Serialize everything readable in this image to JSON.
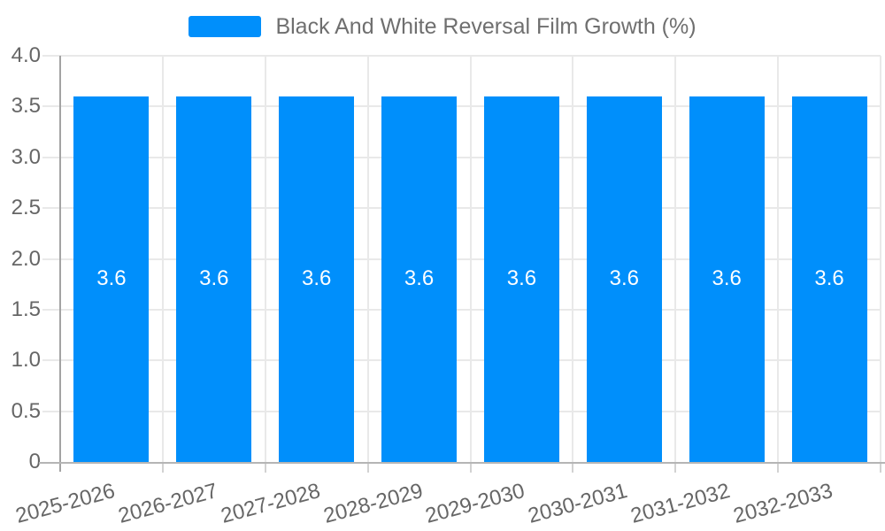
{
  "chart_data": {
    "type": "bar",
    "title": "Black And White Reversal Film Growth (%)",
    "legend": {
      "label": "Black And White Reversal Film Growth (%)",
      "position": "top-center"
    },
    "categories": [
      "2025-2026",
      "2026-2027",
      "2027-2028",
      "2028-2029",
      "2029-2030",
      "2030-2031",
      "2031-2032",
      "2032-2033"
    ],
    "series": [
      {
        "name": "Black And White Reversal Film Growth (%)",
        "values": [
          3.6,
          3.6,
          3.6,
          3.6,
          3.6,
          3.6,
          3.6,
          3.6
        ],
        "data_labels": [
          "3.6",
          "3.6",
          "3.6",
          "3.6",
          "3.6",
          "3.6",
          "3.6",
          "3.6"
        ]
      }
    ],
    "xlabel": "",
    "ylabel": "",
    "ylim": [
      0,
      4
    ],
    "yticks": [
      {
        "value": 4,
        "label": "4.0"
      },
      {
        "value": 3.5,
        "label": "3.5"
      },
      {
        "value": 3,
        "label": "3.0"
      },
      {
        "value": 2.5,
        "label": "2.5"
      },
      {
        "value": 2,
        "label": "2.0"
      },
      {
        "value": 1.5,
        "label": "1.5"
      },
      {
        "value": 1,
        "label": "1.0"
      },
      {
        "value": 0.5,
        "label": "0.5"
      },
      {
        "value": 0,
        "label": "0"
      }
    ],
    "grid": {
      "horizontal": true,
      "vertical": true
    },
    "x_label_rotation_deg": -15,
    "colors": {
      "bar": "#008FFB",
      "bar_label_text": "#ffffff",
      "axis_text": "#666666",
      "legend_text": "#6f6f6f",
      "gridline": "#e9e9e9",
      "y_axis_line": "#a3a3a3",
      "x_axis_line": "#b5b5b5",
      "tick": "#d2d2d2",
      "background": "#ffffff"
    }
  }
}
